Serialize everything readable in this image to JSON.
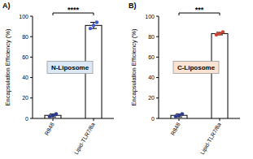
{
  "chart_data": [
    {
      "type": "bar",
      "title": "A)",
      "annotations": [
        "****",
        "N-Liposome"
      ],
      "y_label": "Encapsulation Efficiency (%)",
      "categories": [
        "R848",
        "Lipid-TLR7/8a"
      ],
      "values": [
        3,
        91
      ],
      "errors": [
        1.5,
        3
      ],
      "points": [
        [
          2,
          3,
          4.5
        ],
        [
          88,
          91,
          94
        ]
      ],
      "colors": [
        "#2b3a8f",
        "#3f5bd0"
      ],
      "ylim": [
        0,
        100
      ],
      "yticks": [
        0,
        20,
        40,
        60,
        80,
        100
      ]
    },
    {
      "type": "bar",
      "title": "B)",
      "annotations": [
        "***",
        "C-Liposome"
      ],
      "y_label": "Encapsulation Efficiency (%)",
      "categories": [
        "R848",
        "Lipid-TLR7/8a"
      ],
      "values": [
        3,
        83
      ],
      "errors": [
        1.5,
        1.2
      ],
      "points": [
        [
          2,
          3,
          4.5
        ],
        [
          82,
          83,
          84.5
        ]
      ],
      "colors": [
        "#2b3a8f",
        "#d04030"
      ],
      "ylim": [
        0,
        100
      ],
      "yticks": [
        0,
        20,
        40,
        60,
        80,
        100
      ]
    }
  ]
}
